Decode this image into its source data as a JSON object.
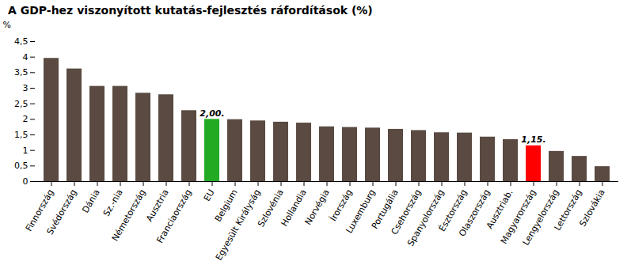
{
  "chart_data": {
    "type": "bar",
    "title": "A GDP-hez viszonyított kutatás-fejlesztés ráfordítások (%)",
    "ylabel": "%",
    "categories": [
      "Finnország",
      "Svédország",
      "Dánia",
      "Sz.-nia",
      "Németország",
      "Ausztria",
      "Franciaország",
      "EU",
      "Belgium",
      "Egyesült Királyság",
      "Szlovénia",
      "Hollandia",
      "Norvégia",
      "Írország",
      "Luxemburg",
      "Portugália",
      "Csehország",
      "Spanyolország",
      "Észtország",
      "Olaszország",
      "Ausztriab.",
      "Magyarország",
      "Lengyelország",
      "Lettország",
      "Szlovákia"
    ],
    "values": [
      3.96,
      3.62,
      3.06,
      3.06,
      2.84,
      2.79,
      2.28,
      2.0,
      1.99,
      1.95,
      1.91,
      1.88,
      1.76,
      1.74,
      1.72,
      1.68,
      1.64,
      1.57,
      1.56,
      1.43,
      1.35,
      1.15,
      0.97,
      0.81,
      0.48
    ],
    "colors": [
      "#5a4a42",
      "#5a4a42",
      "#5a4a42",
      "#5a4a42",
      "#5a4a42",
      "#5a4a42",
      "#5a4a42",
      "#22aa22",
      "#5a4a42",
      "#5a4a42",
      "#5a4a42",
      "#5a4a42",
      "#5a4a42",
      "#5a4a42",
      "#5a4a42",
      "#5a4a42",
      "#5a4a42",
      "#5a4a42",
      "#5a4a42",
      "#5a4a42",
      "#5a4a42",
      "#ff0000",
      "#5a4a42",
      "#5a4a42",
      "#5a4a42"
    ],
    "annotations": [
      {
        "text": "2,00.",
        "x": "EU"
      },
      {
        "text": "1,15.",
        "x": "Magyarország"
      }
    ],
    "ylim": [
      0,
      4.5
    ],
    "yticks": [
      0,
      {
        "value": 0.5,
        "label": "0,5"
      },
      1,
      {
        "value": 1.5,
        "label": "1,5"
      },
      2,
      {
        "value": 2.5,
        "label": "2,5"
      },
      3,
      {
        "value": 3.5,
        "label": "3,5"
      },
      4,
      {
        "value": 4.5,
        "label": "4,5"
      }
    ],
    "grid": false
  }
}
